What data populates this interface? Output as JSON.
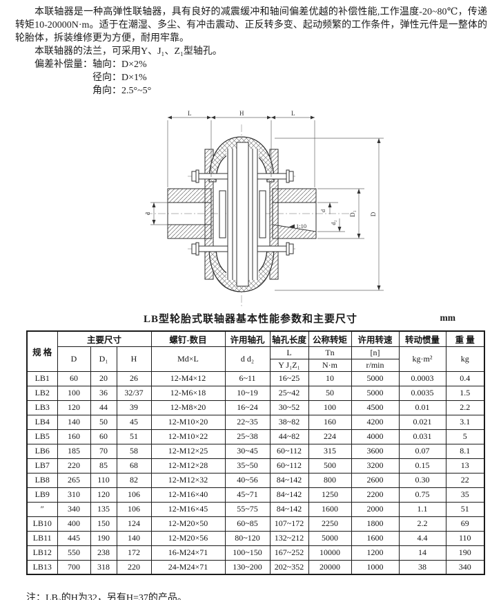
{
  "intro": {
    "p1": "本联轴器是一种高弹性联轴器，具有良好的减震缓冲和轴间偏差优越的补偿性能,工作温度-20~80℃，传递转矩10-20000N·m。适于在潮湿、多尘、有冲击震动、正反转多变、起动频繁的工作条件，弹性元件是一整体的轮胎体，拆装维修更为方便，耐用牢靠。",
    "p2": "本联轴器的法兰，可采用Y、J₁、Z₁型轴孔。",
    "offset_title": "偏差补偿量：",
    "offsets": [
      "轴向：D×2%",
      "径向：D×1%",
      "角向：2.5°~5°"
    ]
  },
  "drawing": {
    "dim_left": "L",
    "dim_center": "H",
    "dim_right": "L",
    "dia_outer": "D",
    "dia_flange": "D₁",
    "bore_left": "d",
    "bore_right": "d",
    "bore_small": "d₂",
    "taper": "1:10"
  },
  "table": {
    "title": "LB型轮胎式联轴器基本性能参数和主要尺寸",
    "unit": "mm",
    "headers": {
      "spec": "规  格",
      "main_dims": "主要尺寸",
      "d": "D",
      "d1": "D₁",
      "h": "H",
      "screws": "螺钉-数目",
      "screws_sub": "Md×L",
      "bore": "许用轴孔",
      "bore_sub": "d d₂",
      "bore_len": "轴孔长度",
      "bore_len_l": "L",
      "bore_len_types": "Y J₁Z₁",
      "torque": "公称转矩",
      "torque_sym": "Tn",
      "torque_unit": "N·m",
      "speed": "许用转速",
      "speed_sym": "[n]",
      "speed_unit": "r/min",
      "inertia": "转动惯量",
      "inertia_unit": "kg·m²",
      "weight": "重  量",
      "weight_unit": "kg"
    },
    "rows": [
      [
        "LB1",
        "60",
        "20",
        "26",
        "12-M4×12",
        "6~11",
        "16~25",
        "10",
        "5000",
        "0.0003",
        "0.4"
      ],
      [
        "LB2",
        "100",
        "36",
        "32/37",
        "12-M6×18",
        "10~19",
        "25~42",
        "50",
        "5000",
        "0.0035",
        "1.5"
      ],
      [
        "LB3",
        "120",
        "44",
        "39",
        "12-M8×20",
        "16~24",
        "30~52",
        "100",
        "4500",
        "0.01",
        "2.2"
      ],
      [
        "LB4",
        "140",
        "50",
        "45",
        "12-M10×20",
        "22~35",
        "38~82",
        "160",
        "4200",
        "0.021",
        "3.1"
      ],
      [
        "LB5",
        "160",
        "60",
        "51",
        "12-M10×22",
        "25~38",
        "44~82",
        "224",
        "4000",
        "0.031",
        "5"
      ],
      [
        "LB6",
        "185",
        "70",
        "58",
        "12-M12×25",
        "30~45",
        "60~112",
        "315",
        "3600",
        "0.07",
        "8.1"
      ],
      [
        "LB7",
        "220",
        "85",
        "68",
        "12-M12×28",
        "35~50",
        "60~112",
        "500",
        "3200",
        "0.15",
        "13"
      ],
      [
        "LB8",
        "265",
        "110",
        "82",
        "12-M12×32",
        "40~56",
        "84~142",
        "800",
        "2600",
        "0.30",
        "22"
      ],
      [
        "LB9",
        "310",
        "120",
        "106",
        "12-M16×40",
        "45~71",
        "84~142",
        "1250",
        "2200",
        "0.75",
        "35"
      ],
      [
        "″",
        "340",
        "135",
        "106",
        "12-M16×45",
        "55~75",
        "84~142",
        "1600",
        "2000",
        "1.1",
        "51"
      ],
      [
        "LB10",
        "400",
        "150",
        "124",
        "12-M20×50",
        "60~85",
        "107~172",
        "2250",
        "1800",
        "2.2",
        "69"
      ],
      [
        "LB11",
        "445",
        "190",
        "140",
        "12-M20×56",
        "80~120",
        "132~212",
        "5000",
        "1600",
        "4.4",
        "110"
      ],
      [
        "LB12",
        "550",
        "238",
        "172",
        "16-M24×71",
        "100~150",
        "167~252",
        "10000",
        "1200",
        "14",
        "190"
      ],
      [
        "LB13",
        "700",
        "318",
        "220",
        "24-M24×71",
        "130~200",
        "202~352",
        "20000",
        "1000",
        "38",
        "340"
      ]
    ]
  },
  "note": "注：LB₂的H为32，另有H=37的产品。"
}
